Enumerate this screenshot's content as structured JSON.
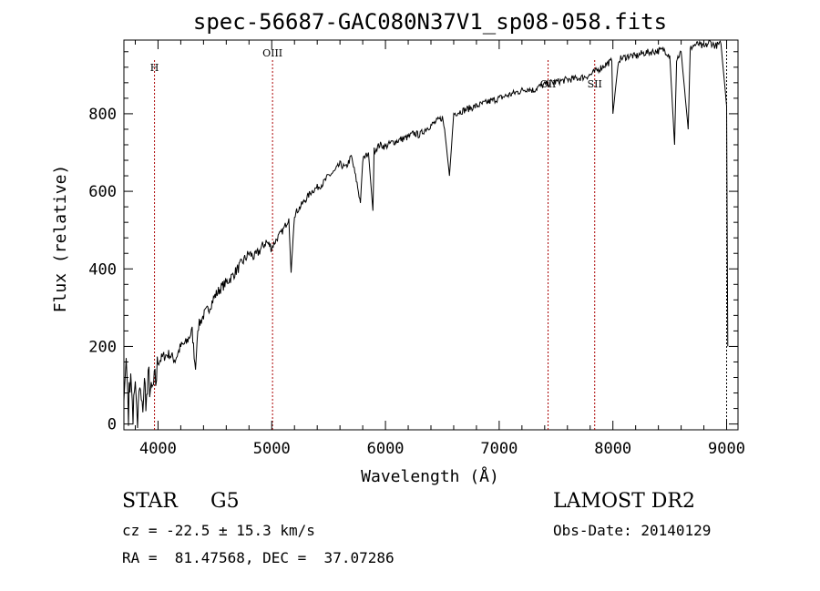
{
  "chart_data": {
    "type": "line",
    "title": "spec-56687-GAC080N37V1_sp08-058.fits",
    "xlabel": "Wavelength (Å)",
    "ylabel": "Flux (relative)",
    "xlim": [
      3700,
      9100
    ],
    "ylim": [
      -15,
      990
    ],
    "x_ticks": [
      4000,
      5000,
      6000,
      7000,
      8000,
      9000
    ],
    "y_ticks": [
      0,
      200,
      400,
      600,
      800
    ],
    "grid": false,
    "line_color": "#000000",
    "marker_color": "#aa0000",
    "series": [
      {
        "x": [
          3700,
          3720,
          3740,
          3760,
          3780,
          3800,
          3820,
          3840,
          3860,
          3880,
          3900,
          3920,
          3940,
          3960,
          3980,
          4000,
          4050,
          4100,
          4150,
          4200,
          4250,
          4300,
          4330,
          4350,
          4400,
          4450,
          4500,
          4550,
          4600,
          4650,
          4700,
          4750,
          4800,
          4850,
          4900,
          4950,
          5000,
          5050,
          5100,
          5150,
          5170,
          5200,
          5250,
          5300,
          5350,
          5400,
          5450,
          5500,
          5550,
          5600,
          5650,
          5700,
          5750,
          5780,
          5800,
          5850,
          5890,
          5900,
          5950,
          6000,
          6050,
          6100,
          6150,
          6200,
          6250,
          6300,
          6350,
          6400,
          6450,
          6500,
          6520,
          6563,
          6600,
          6650,
          6700,
          6750,
          6800,
          6850,
          6900,
          6950,
          7000,
          7050,
          7100,
          7150,
          7200,
          7250,
          7300,
          7350,
          7400,
          7450,
          7500,
          7550,
          7600,
          7650,
          7700,
          7750,
          7800,
          7850,
          7900,
          7950,
          7990,
          8000,
          8050,
          8100,
          8150,
          8200,
          8250,
          8300,
          8350,
          8400,
          8450,
          8500,
          8542,
          8560,
          8600,
          8662,
          8680,
          8700,
          8750,
          8800,
          8850,
          8900,
          8950,
          9000,
          9010
        ],
        "y": [
          60,
          170,
          40,
          130,
          25,
          110,
          5,
          90,
          30,
          100,
          60,
          120,
          70,
          95,
          110,
          160,
          175,
          180,
          165,
          200,
          210,
          240,
          140,
          250,
          280,
          300,
          330,
          350,
          365,
          380,
          400,
          420,
          440,
          430,
          450,
          470,
          455,
          480,
          500,
          530,
          390,
          540,
          560,
          580,
          600,
          610,
          620,
          640,
          650,
          670,
          660,
          690,
          620,
          570,
          680,
          700,
          550,
          705,
          720,
          715,
          725,
          730,
          735,
          740,
          750,
          745,
          760,
          770,
          780,
          790,
          760,
          640,
          800,
          805,
          810,
          815,
          820,
          825,
          830,
          835,
          840,
          845,
          850,
          855,
          860,
          865,
          860,
          870,
          875,
          880,
          882,
          885,
          888,
          890,
          892,
          895,
          900,
          910,
          920,
          930,
          935,
          800,
          940,
          945,
          950,
          948,
          955,
          958,
          960,
          962,
          965,
          950,
          720,
          940,
          960,
          760,
          965,
          975,
          980,
          970,
          985,
          975,
          980,
          820,
          200
        ]
      }
    ],
    "annotations": [
      {
        "label": "H",
        "x": 3969
      },
      {
        "label": "OIII",
        "x": 5007
      },
      {
        "label": "OII",
        "x": 7430
      },
      {
        "label": "SII",
        "x": 7840
      },
      {
        "label": "",
        "x": 9000
      }
    ],
    "footer": {
      "object": "STAR",
      "subclass": "G5",
      "survey": "LAMOST DR2",
      "cz": "cz = -22.5 ± 15.3 km/s",
      "obs_date": "Obs-Date: 20140129",
      "coords": "RA =  81.47568, DEC =  37.07286"
    }
  }
}
